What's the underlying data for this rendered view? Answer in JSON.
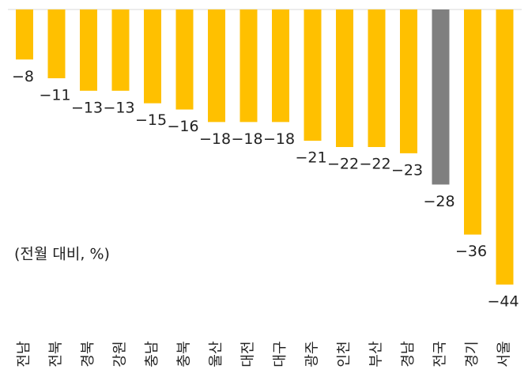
{
  "chart_data": {
    "type": "bar",
    "annotation": "(전월 대비, %)",
    "categories": [
      "전남",
      "전북",
      "경북",
      "강원",
      "충남",
      "충북",
      "울산",
      "대전",
      "대구",
      "광주",
      "인천",
      "부산",
      "경남",
      "전국",
      "경기",
      "서울"
    ],
    "values": [
      -8,
      -11,
      -13,
      -13,
      -15,
      -16,
      -18,
      -18,
      -18,
      -21,
      -22,
      -22,
      -23,
      -28,
      -36,
      -44
    ],
    "value_labels": [
      "−8",
      "−11",
      "−13",
      "−13",
      "−15",
      "−16",
      "−18",
      "−18",
      "−18",
      "−21",
      "−22",
      "−22",
      "−23",
      "−28",
      "−36",
      "−44"
    ],
    "colors": [
      "#ffc000",
      "#ffc000",
      "#ffc000",
      "#ffc000",
      "#ffc000",
      "#ffc000",
      "#ffc000",
      "#ffc000",
      "#ffc000",
      "#ffc000",
      "#ffc000",
      "#ffc000",
      "#ffc000",
      "#7f7f7f",
      "#ffc000",
      "#ffc000"
    ],
    "ylim": [
      -44,
      0
    ]
  }
}
